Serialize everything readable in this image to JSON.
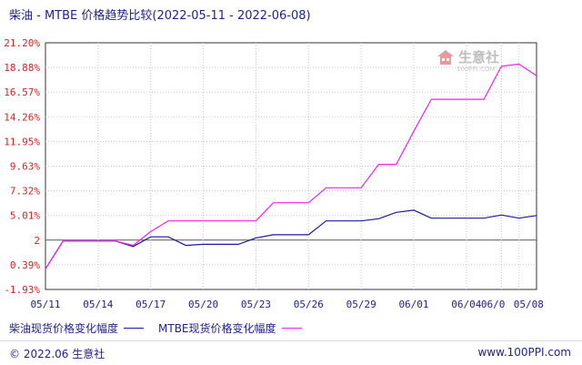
{
  "title": "柴油 - MTBE 价格趋势比较(2022-05-11 - 2022-06-08)",
  "watermark": {
    "text": "生意社",
    "sub": "100PPI.COM"
  },
  "footer": {
    "copyright": "© 2022.06 生意社",
    "site": "www.100PPI.com"
  },
  "colors": {
    "diesel": "#1a1aa6",
    "mtbe": "#ee22ee",
    "grid": "#c8c8c8",
    "axis": "#333333",
    "zero": "#555555"
  },
  "chart_data": {
    "type": "line",
    "xlabel": "",
    "ylabel": "",
    "ylim": [
      -1.93,
      21.2
    ],
    "grid": true,
    "legend": "bottom",
    "y_ticks": [
      "21.20%",
      "18.88%",
      "16.57%",
      "14.26%",
      "11.95%",
      "9.63%",
      "7.32%",
      "5.01%",
      "2",
      "0.39%",
      "-1.93%"
    ],
    "y_tick_values": [
      21.2,
      18.88,
      16.57,
      14.26,
      11.95,
      9.63,
      7.32,
      5.01,
      2.7,
      0.39,
      -1.93
    ],
    "x_range": [
      0,
      28
    ],
    "x_ticks": [
      {
        "label": "05/11",
        "x": 0
      },
      {
        "label": "05/14",
        "x": 3
      },
      {
        "label": "05/17",
        "x": 6
      },
      {
        "label": "05/20",
        "x": 9
      },
      {
        "label": "05/23",
        "x": 12
      },
      {
        "label": "05/26",
        "x": 15
      },
      {
        "label": "05/29",
        "x": 18
      },
      {
        "label": "06/01",
        "x": 21
      },
      {
        "label": "06/04",
        "x": 24
      },
      {
        "label": "06/0",
        "x": 26
      },
      {
        "label": "05/08",
        "x": 27
      }
    ],
    "series": [
      {
        "name": "柴油现货价格变化幅度",
        "color": "#1a1aa6",
        "points": [
          [
            0,
            0
          ],
          [
            1,
            2.6
          ],
          [
            2,
            2.6
          ],
          [
            3,
            2.6
          ],
          [
            4,
            2.6
          ],
          [
            5,
            2.1
          ],
          [
            6,
            3.0
          ],
          [
            7,
            3.0
          ],
          [
            8,
            2.2
          ],
          [
            9,
            2.3
          ],
          [
            10,
            2.3
          ],
          [
            11,
            2.3
          ],
          [
            12,
            2.9
          ],
          [
            13,
            3.2
          ],
          [
            14,
            3.2
          ],
          [
            15,
            3.2
          ],
          [
            16,
            4.5
          ],
          [
            17,
            4.5
          ],
          [
            18,
            4.5
          ],
          [
            19,
            4.7
          ],
          [
            20,
            5.3
          ],
          [
            21,
            5.5
          ],
          [
            22,
            4.75
          ],
          [
            23,
            4.75
          ],
          [
            24,
            4.75
          ],
          [
            25,
            4.75
          ],
          [
            26,
            5.05
          ],
          [
            27,
            4.75
          ],
          [
            28,
            5.0
          ]
        ]
      },
      {
        "name": "MTBE现货价格变化幅度",
        "color": "#ee22ee",
        "points": [
          [
            0,
            0
          ],
          [
            1,
            2.6
          ],
          [
            2,
            2.6
          ],
          [
            3,
            2.6
          ],
          [
            4,
            2.6
          ],
          [
            5,
            2.2
          ],
          [
            6,
            3.5
          ],
          [
            7,
            4.5
          ],
          [
            8,
            4.5
          ],
          [
            9,
            4.5
          ],
          [
            10,
            4.5
          ],
          [
            11,
            4.5
          ],
          [
            12,
            4.5
          ],
          [
            13,
            6.2
          ],
          [
            14,
            6.2
          ],
          [
            15,
            6.2
          ],
          [
            16,
            7.6
          ],
          [
            17,
            7.6
          ],
          [
            18,
            7.6
          ],
          [
            19,
            9.8
          ],
          [
            20,
            9.8
          ],
          [
            21,
            12.9
          ],
          [
            22,
            15.9
          ],
          [
            23,
            15.9
          ],
          [
            24,
            15.9
          ],
          [
            25,
            15.9
          ],
          [
            26,
            19.0
          ],
          [
            27,
            19.2
          ],
          [
            28,
            18.1
          ]
        ]
      }
    ]
  }
}
